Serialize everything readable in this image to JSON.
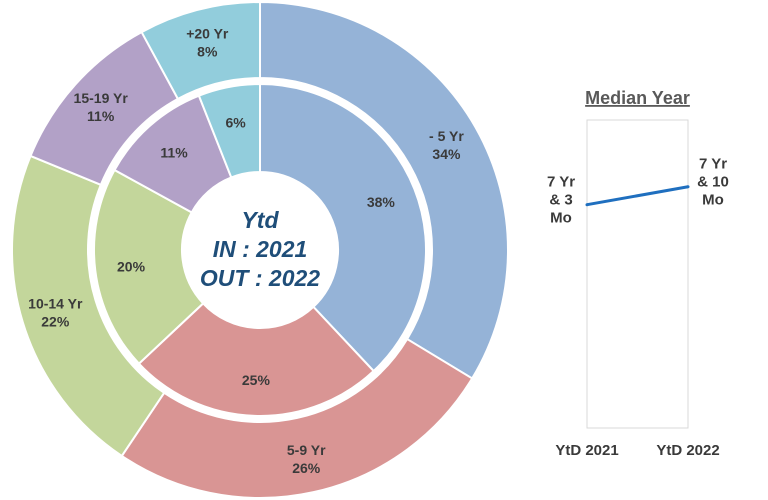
{
  "chart_data": [
    {
      "type": "pie",
      "variant": "nested-donut",
      "center_text": [
        "Ytd",
        "IN : 2021",
        "OUT : 2022"
      ],
      "rings": [
        {
          "name": "IN : 2021",
          "ring": "inner",
          "slices": [
            {
              "label": "",
              "value": 38,
              "value_label": "38%",
              "color": "#95b3d7"
            },
            {
              "label": "",
              "value": 25,
              "value_label": "25%",
              "color": "#d99594"
            },
            {
              "label": "",
              "value": 20,
              "value_label": "20%",
              "color": "#c3d69b"
            },
            {
              "label": "",
              "value": 11,
              "value_label": "11%",
              "color": "#b2a1c7"
            },
            {
              "label": "",
              "value": 6,
              "value_label": "6%",
              "color": "#92cddc"
            }
          ]
        },
        {
          "name": "OUT : 2022",
          "ring": "outer",
          "slices": [
            {
              "label": "- 5 Yr",
              "value": 34,
              "value_label": "34%",
              "color": "#95b3d7"
            },
            {
              "label": "5-9 Yr",
              "value": 26,
              "value_label": "26%",
              "color": "#d99594"
            },
            {
              "label": "10-14 Yr",
              "value": 22,
              "value_label": "22%",
              "color": "#c3d69b"
            },
            {
              "label": "15-19 Yr",
              "value": 11,
              "value_label": "11%",
              "color": "#b2a1c7"
            },
            {
              "label": "+20 Yr",
              "value": 8,
              "value_label": "8%",
              "color": "#92cddc"
            }
          ]
        }
      ]
    },
    {
      "type": "line",
      "title": "Median Year",
      "categories": [
        "YtD 2021",
        "YtD 2022"
      ],
      "values_years": [
        7.25,
        7.833
      ],
      "data_labels": [
        [
          "7 Yr",
          "& 3",
          "Mo"
        ],
        [
          "7 Yr",
          "& 10",
          "Mo"
        ]
      ],
      "ylim": [
        0,
        10
      ],
      "line_color": "#1f6fbf",
      "grid": false
    }
  ]
}
